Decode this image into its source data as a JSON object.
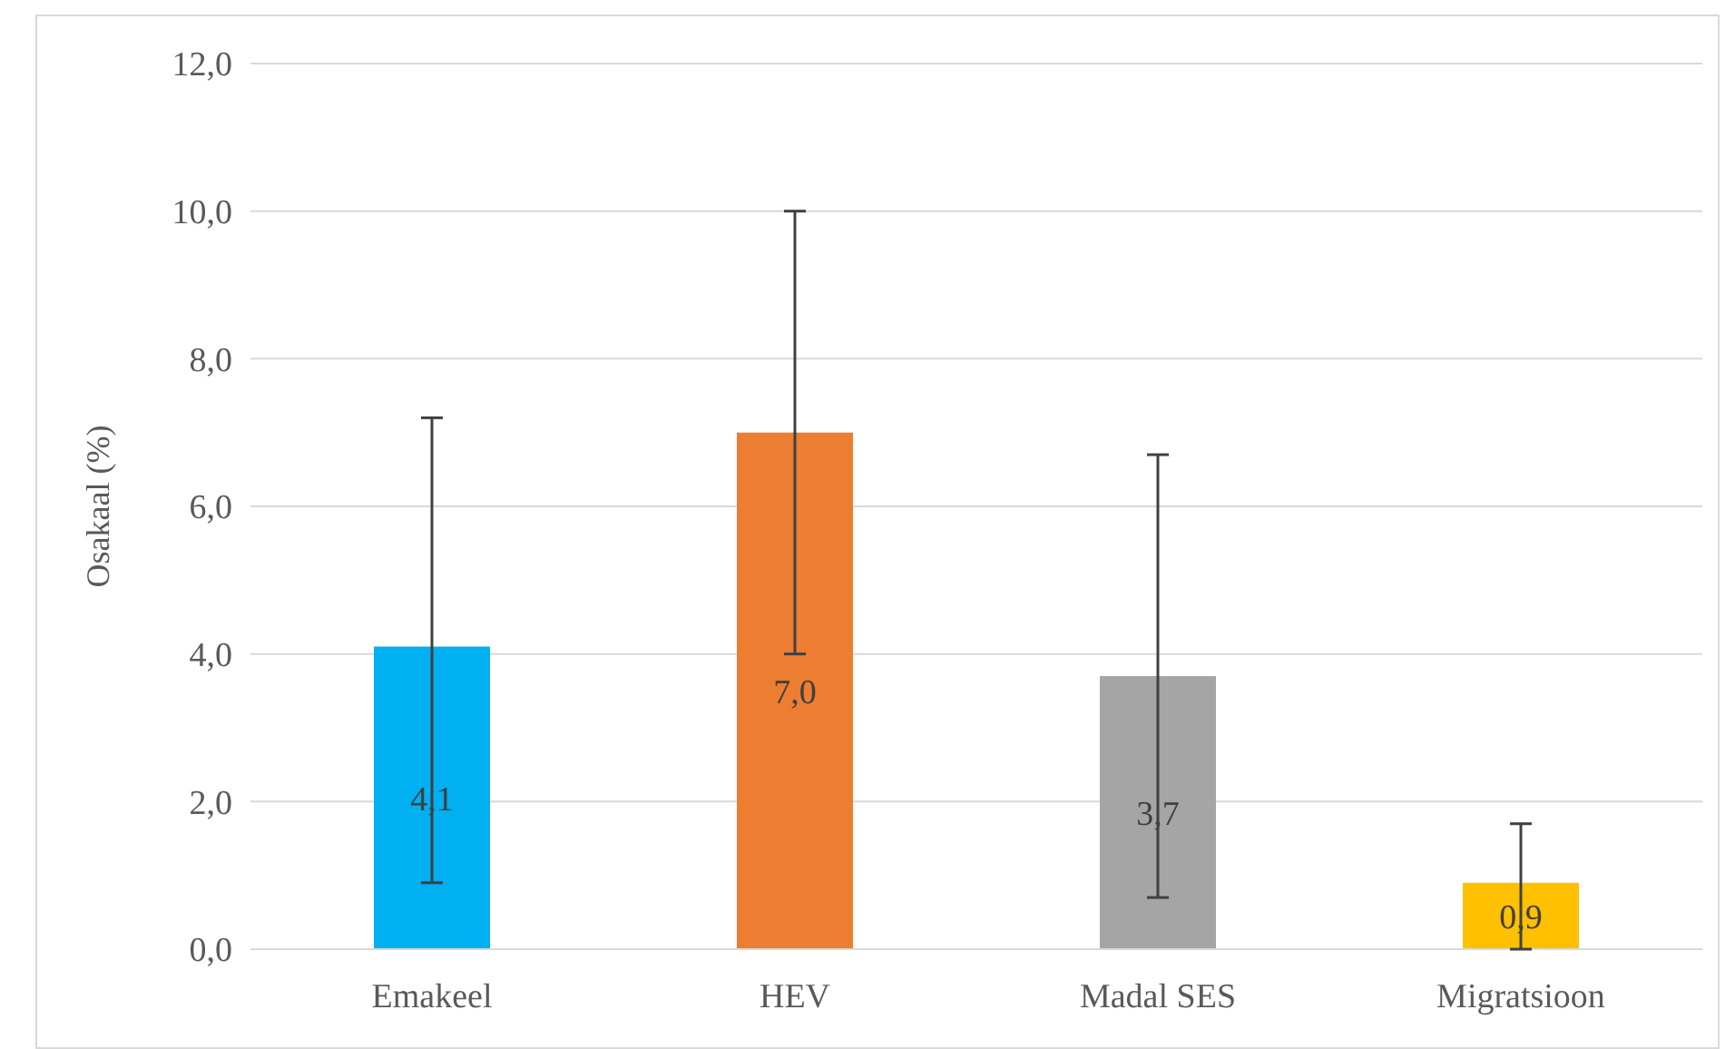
{
  "chart_data": {
    "type": "bar",
    "ylabel": "Osakaal (%)",
    "categories": [
      "Emakeel",
      "HEV",
      "Madal SES",
      "Migratsioon"
    ],
    "values": [
      4.1,
      7.0,
      3.7,
      0.9
    ],
    "colors": [
      "#00b0f0",
      "#ed7d31",
      "#a5a5a5",
      "#ffc000"
    ],
    "errors": [
      [
        0.9,
        7.2
      ],
      [
        4.0,
        10.0
      ],
      [
        0.7,
        6.7
      ],
      [
        0.0,
        1.7
      ]
    ],
    "value_labels": [
      "4,1",
      "7,0",
      "3,7",
      "0,9"
    ],
    "ylim": [
      0,
      12
    ],
    "yticks": [
      {
        "value": 0,
        "label": "0,0"
      },
      {
        "value": 2,
        "label": "2,0"
      },
      {
        "value": 4,
        "label": "4,0"
      },
      {
        "value": 6,
        "label": "6,0"
      },
      {
        "value": 8,
        "label": "8,0"
      },
      {
        "value": 10,
        "label": "10,0"
      },
      {
        "value": 12,
        "label": "12,0"
      }
    ],
    "grid": "y"
  }
}
